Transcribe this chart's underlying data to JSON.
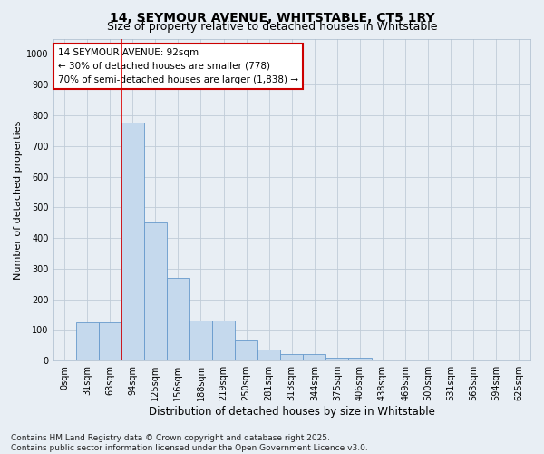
{
  "title_line1": "14, SEYMOUR AVENUE, WHITSTABLE, CT5 1RY",
  "title_line2": "Size of property relative to detached houses in Whitstable",
  "xlabel": "Distribution of detached houses by size in Whitstable",
  "ylabel": "Number of detached properties",
  "footer_line1": "Contains HM Land Registry data © Crown copyright and database right 2025.",
  "footer_line2": "Contains public sector information licensed under the Open Government Licence v3.0.",
  "annotation_line1": "14 SEYMOUR AVENUE: 92sqm",
  "annotation_line2": "← 30% of detached houses are smaller (778)",
  "annotation_line3": "70% of semi-detached houses are larger (1,838) →",
  "categories": [
    "0sqm",
    "31sqm",
    "63sqm",
    "94sqm",
    "125sqm",
    "156sqm",
    "188sqm",
    "219sqm",
    "250sqm",
    "281sqm",
    "313sqm",
    "344sqm",
    "375sqm",
    "406sqm",
    "438sqm",
    "469sqm",
    "500sqm",
    "531sqm",
    "563sqm",
    "594sqm",
    "625sqm"
  ],
  "bar_values": [
    5,
    125,
    125,
    775,
    450,
    270,
    130,
    130,
    70,
    35,
    20,
    20,
    10,
    10,
    0,
    0,
    5,
    0,
    0,
    0,
    0
  ],
  "bar_color": "#c5d9ed",
  "bar_edge_color": "#6699cc",
  "vline_color": "#dd0000",
  "vline_x": 2.5,
  "ylim": [
    0,
    1050
  ],
  "yticks": [
    0,
    100,
    200,
    300,
    400,
    500,
    600,
    700,
    800,
    900,
    1000
  ],
  "annotation_box_facecolor": "#ffffff",
  "annotation_box_edgecolor": "#cc0000",
  "bg_color": "#e8eef4",
  "grid_color": "#c0ccd8",
  "title_fontsize": 10,
  "subtitle_fontsize": 9,
  "axis_label_fontsize": 8,
  "tick_fontsize": 7,
  "annotation_fontsize": 7.5,
  "footer_fontsize": 6.5
}
